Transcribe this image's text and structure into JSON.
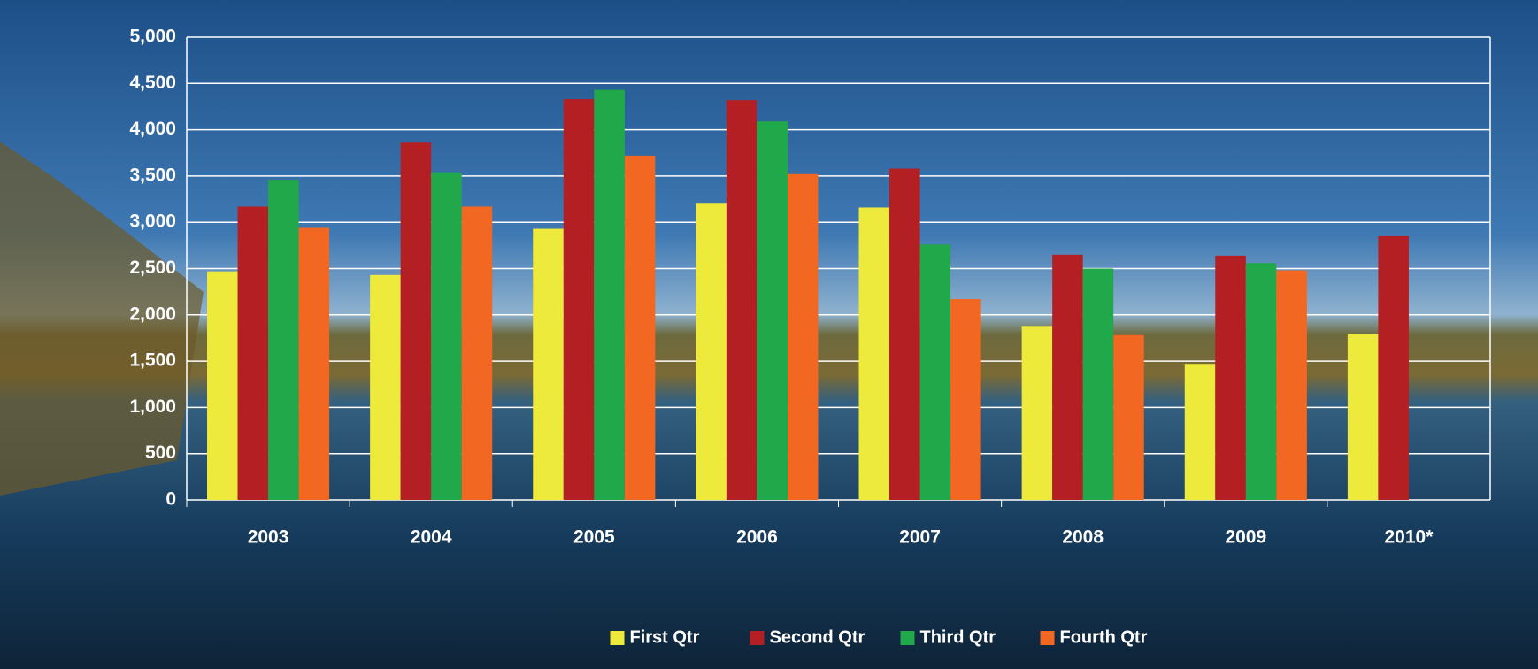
{
  "chart_data": {
    "type": "bar",
    "categories": [
      "2003",
      "2004",
      "2005",
      "2006",
      "2007",
      "2008",
      "2009",
      "2010*"
    ],
    "series": [
      {
        "name": "First Qtr",
        "color": "#eeea3c",
        "values": [
          2470,
          2430,
          2930,
          3210,
          3160,
          1880,
          1470,
          1790
        ]
      },
      {
        "name": "Second Qtr",
        "color": "#b41f24",
        "values": [
          3170,
          3860,
          4330,
          4320,
          3580,
          2650,
          2640,
          2850
        ]
      },
      {
        "name": "Third Qtr",
        "color": "#21a84a",
        "values": [
          3460,
          3540,
          4430,
          4090,
          2760,
          2500,
          2560,
          null
        ]
      },
      {
        "name": "Fourth Qtr",
        "color": "#f26722",
        "values": [
          2940,
          3170,
          3720,
          3520,
          2170,
          1780,
          2480,
          null
        ]
      }
    ],
    "ylim": [
      0,
      5000
    ],
    "yticks": [
      0,
      500,
      {
        "value": 1000,
        "label": "1,000"
      },
      {
        "value": 1500,
        "label": "1,500"
      },
      {
        "value": 2000,
        "label": "2,000"
      },
      {
        "value": 2500,
        "label": "2,500"
      },
      {
        "value": 3000,
        "label": "3,000"
      },
      {
        "value": 3500,
        "label": "3,500"
      },
      {
        "value": 4000,
        "label": "4,000"
      },
      {
        "value": 4500,
        "label": "4,500"
      },
      {
        "value": 5000,
        "label": "5,000"
      }
    ],
    "grid": true,
    "legend": "bottom"
  }
}
